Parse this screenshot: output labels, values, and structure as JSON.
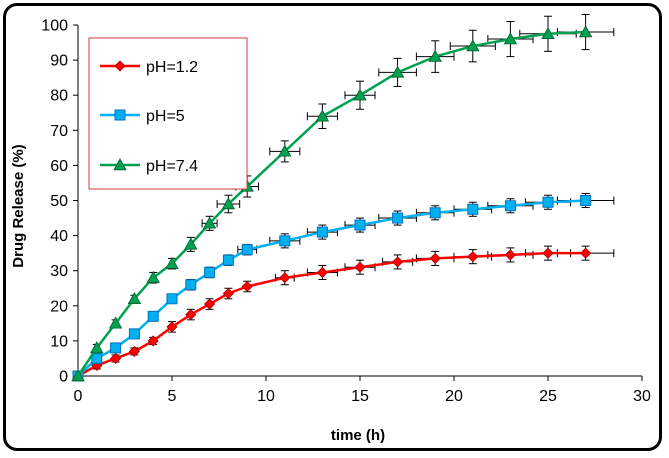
{
  "chart_data": {
    "type": "line",
    "title": "",
    "xlabel": "time (h)",
    "ylabel": "Drug Release (%)",
    "xlim": [
      0,
      30
    ],
    "ylim": [
      0,
      100
    ],
    "xticks": [
      0,
      5,
      10,
      15,
      20,
      25,
      30
    ],
    "yticks": [
      0,
      10,
      20,
      30,
      40,
      50,
      60,
      70,
      80,
      90,
      100
    ],
    "grid": false,
    "legend_position": "top-left",
    "series": [
      {
        "name": "pH=1.2",
        "color": "#ff0000",
        "marker": "diamond",
        "x": [
          0,
          1,
          2,
          3,
          4,
          5,
          6,
          7,
          8,
          9,
          11,
          13,
          15,
          17,
          19,
          21,
          23,
          25,
          27
        ],
        "y": [
          0,
          3,
          5,
          7,
          10,
          14,
          17.5,
          20.5,
          23.5,
          25.5,
          28,
          29.5,
          31,
          32.5,
          33.5,
          34,
          34.5,
          35,
          35
        ],
        "yerr": [
          0,
          1,
          1,
          1,
          1,
          1.5,
          1.5,
          1.5,
          1.5,
          1.5,
          2,
          2,
          2,
          2,
          2,
          2,
          2,
          2,
          2
        ],
        "xerr": [
          0,
          0,
          0,
          0,
          0,
          0,
          0,
          0,
          0,
          0,
          0.5,
          0.8,
          0.8,
          0.8,
          1,
          1,
          1.2,
          1.2,
          1.5
        ]
      },
      {
        "name": "pH=5",
        "color": "#00b0f0",
        "marker": "square",
        "x": [
          0,
          1,
          2,
          3,
          4,
          5,
          6,
          7,
          8,
          9,
          11,
          13,
          15,
          17,
          19,
          21,
          23,
          25,
          27
        ],
        "y": [
          0,
          5,
          8,
          12,
          17,
          22,
          26,
          29.5,
          33,
          36,
          38.5,
          41,
          43,
          45,
          46.5,
          47.5,
          48.5,
          49.5,
          50
        ],
        "yerr": [
          0,
          1,
          1,
          1,
          1,
          1,
          1.5,
          1.5,
          1.5,
          1.5,
          2,
          2,
          2,
          2,
          2,
          2,
          2,
          2,
          2
        ],
        "xerr": [
          0,
          0,
          0,
          0,
          0,
          0,
          0,
          0,
          0,
          0.5,
          0.8,
          0.8,
          0.8,
          1,
          1,
          1,
          1.2,
          1.2,
          1.5
        ]
      },
      {
        "name": "pH=7.4",
        "color": "#00a050",
        "marker": "triangle",
        "x": [
          0,
          1,
          2,
          3,
          4,
          5,
          6,
          7,
          8,
          9,
          11,
          13,
          15,
          17,
          19,
          21,
          23,
          25,
          27
        ],
        "y": [
          0,
          8,
          15,
          22,
          28,
          32,
          37.5,
          43.5,
          49,
          54,
          64,
          74,
          80,
          86.5,
          91,
          94,
          96,
          97.5,
          98
        ],
        "yerr": [
          0,
          1,
          1,
          1,
          1.5,
          1.5,
          2,
          2,
          2.5,
          3,
          3,
          3.5,
          4,
          4,
          4.5,
          4.5,
          5,
          5,
          5
        ],
        "xerr": [
          0,
          0,
          0,
          0,
          0,
          0,
          0,
          0.4,
          0.6,
          0.6,
          0.8,
          0.8,
          0.8,
          1,
          1,
          1.2,
          1.2,
          1.5,
          1.5
        ]
      }
    ]
  }
}
